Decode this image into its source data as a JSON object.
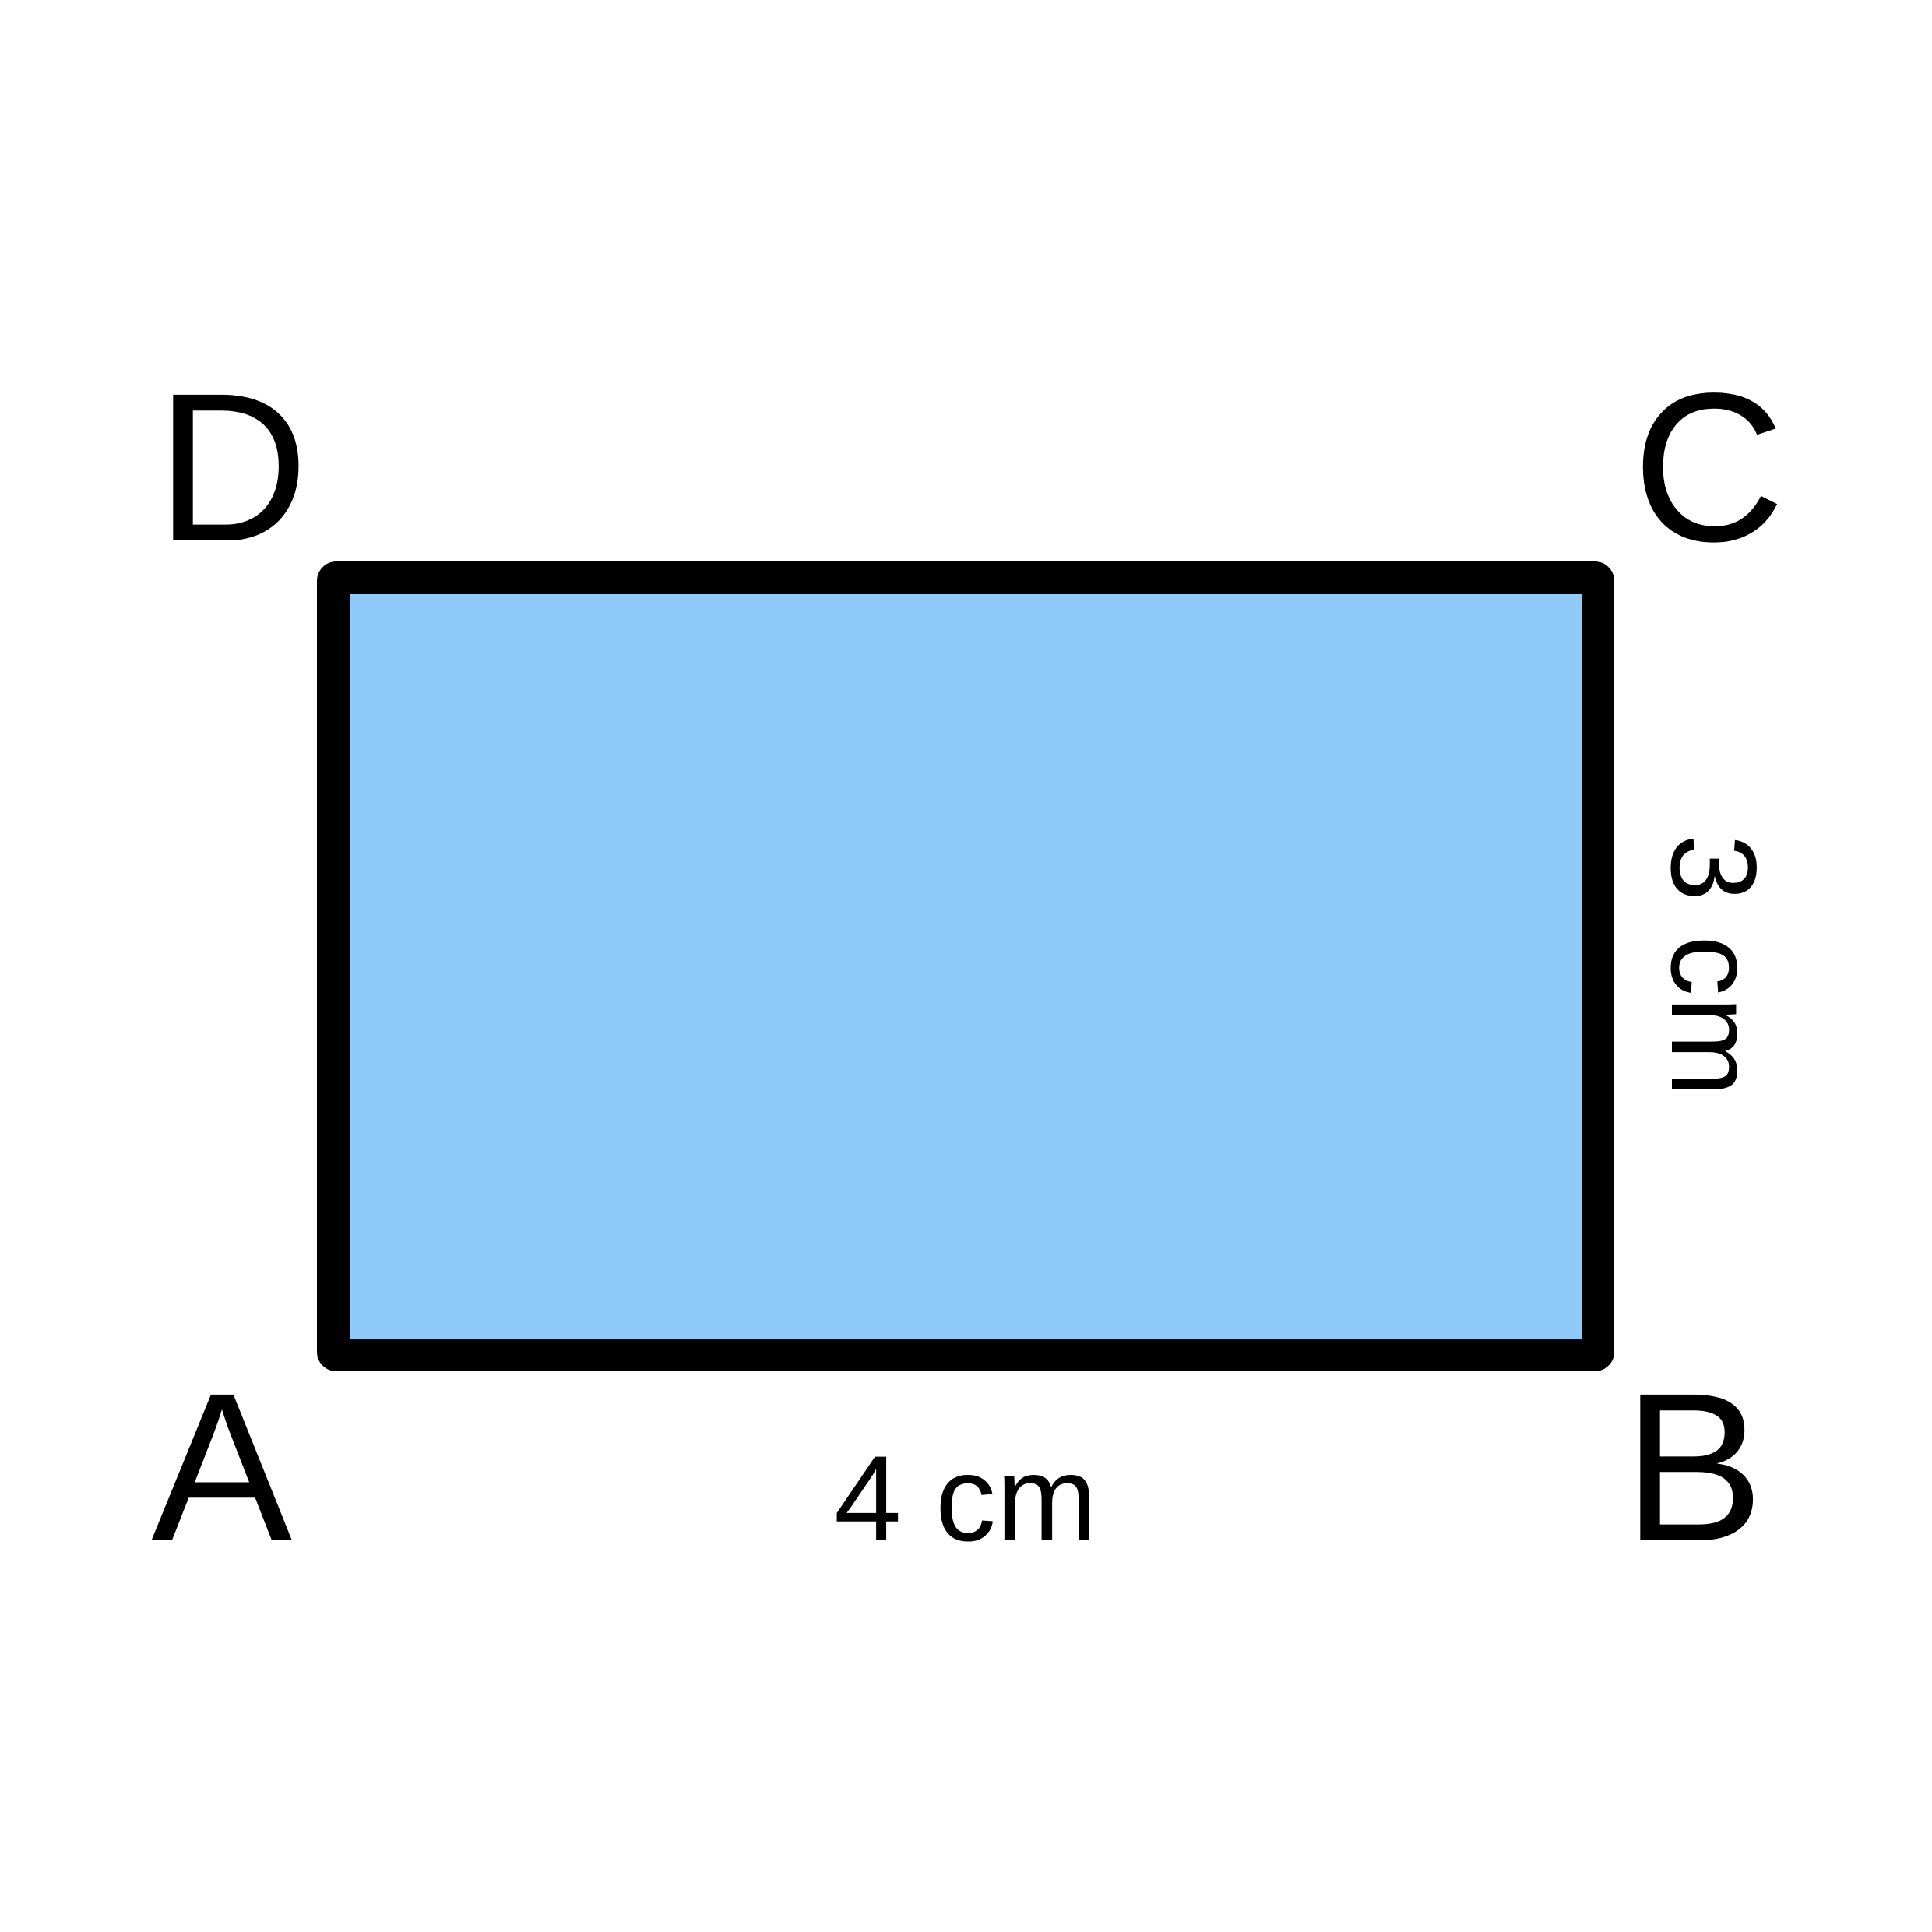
{
  "shape": {
    "type": "rectangle",
    "fill_color": "#90caf9",
    "stroke_color": "#000000"
  },
  "vertices": {
    "A": "A",
    "B": "B",
    "C": "C",
    "D": "D"
  },
  "dimensions": {
    "width_label": "4 cm",
    "height_label": "3 cm"
  }
}
